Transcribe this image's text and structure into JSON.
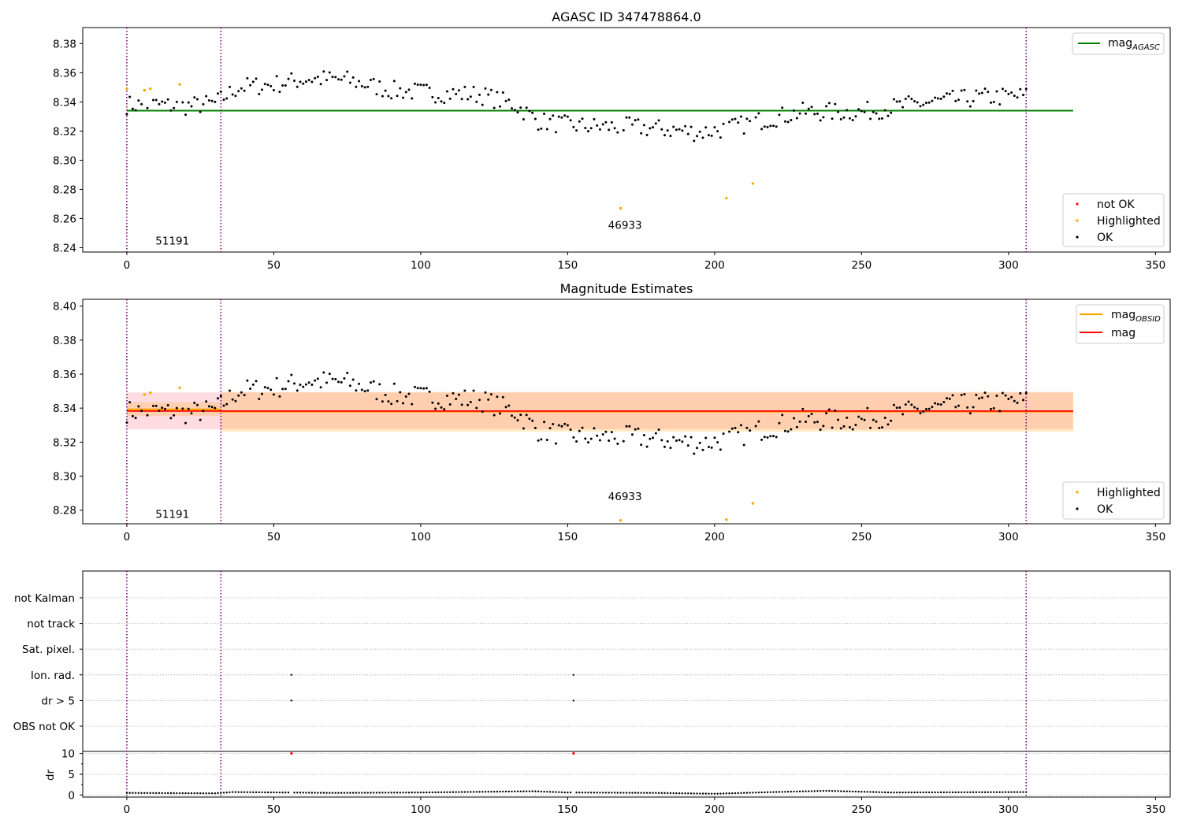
{
  "chart_data": [
    {
      "type": "scatter",
      "title": "AGASC ID 347478864.0",
      "xlim": [
        -15,
        355
      ],
      "ylim": [
        8.237,
        8.391
      ],
      "xticks": [
        "0",
        "50",
        "100",
        "150",
        "200",
        "250",
        "300",
        "350"
      ],
      "yticks": [
        "8.24",
        "8.26",
        "8.28",
        "8.30",
        "8.32",
        "8.34",
        "8.36",
        "8.38"
      ],
      "vlines": [
        0,
        32,
        306
      ],
      "hline": {
        "name": "mag_AGASC",
        "value": 8.334,
        "x_range": [
          0,
          322
        ],
        "color": "#008000"
      },
      "annotations": [
        {
          "text": "51191",
          "x": 15.5,
          "y": 8.242
        },
        {
          "text": "46933",
          "x": 169.5,
          "y": 8.253
        }
      ],
      "legend_top": {
        "position": "top-right",
        "entries": [
          {
            "name": "mag",
            "sub": "AGASC",
            "color": "#008000"
          }
        ]
      },
      "legend_bottom": {
        "position": "bottom-right",
        "entries": [
          {
            "name": "not OK",
            "color": "#ff0000"
          },
          {
            "name": "Highlighted",
            "color": "#ffa500"
          },
          {
            "name": "OK",
            "color": "#000000"
          }
        ]
      },
      "highlighted_points": [
        {
          "x": 0,
          "y": 8.349
        },
        {
          "x": 6,
          "y": 8.348
        },
        {
          "x": 8,
          "y": 8.349
        },
        {
          "x": 18,
          "y": 8.352
        },
        {
          "x": 168,
          "y": 8.267
        },
        {
          "x": 204,
          "y": 8.274
        },
        {
          "x": 213,
          "y": 8.284
        }
      ]
    },
    {
      "type": "scatter",
      "title": "Magnitude Estimates",
      "xlim": [
        -15,
        355
      ],
      "ylim": [
        8.272,
        8.404
      ],
      "xticks": [
        "0",
        "50",
        "100",
        "150",
        "200",
        "250",
        "300",
        "350"
      ],
      "yticks": [
        "8.28",
        "8.30",
        "8.32",
        "8.34",
        "8.36",
        "8.38",
        "8.40"
      ],
      "vlines": [
        0,
        32,
        306
      ],
      "mag_line": {
        "name": "mag",
        "value": 8.3383,
        "x_range": [
          0,
          322
        ],
        "color": "#ff0000"
      },
      "mag_band": {
        "low": 8.3275,
        "high": 8.3492,
        "color": "#ffc0cb"
      },
      "obsid_segments": [
        {
          "x_range": [
            0,
            32
          ],
          "value": 8.3392,
          "low": 8.3355,
          "high": 8.3435
        },
        {
          "x_range": [
            32,
            322
          ],
          "value": 8.338,
          "low": 8.3262,
          "high": 8.3495
        }
      ],
      "annotations": [
        {
          "text": "51191",
          "x": 15.5,
          "y": 8.2755
        },
        {
          "text": "46933",
          "x": 169.5,
          "y": 8.286
        }
      ],
      "legend_top": {
        "position": "top-right",
        "entries": [
          {
            "name": "mag",
            "sub": "OBSID",
            "color": "#ffa500"
          },
          {
            "name": "mag",
            "sub": "",
            "color": "#ff0000"
          }
        ]
      },
      "legend_bottom": {
        "position": "bottom-right",
        "entries": [
          {
            "name": "Highlighted",
            "color": "#ffa500"
          },
          {
            "name": "OK",
            "color": "#000000"
          }
        ]
      },
      "highlighted_points": [
        {
          "x": 6,
          "y": 8.348
        },
        {
          "x": 8,
          "y": 8.349
        },
        {
          "x": 18,
          "y": 8.352
        },
        {
          "x": 168,
          "y": 8.274
        },
        {
          "x": 204,
          "y": 8.2745
        },
        {
          "x": 213,
          "y": 8.284
        }
      ]
    },
    {
      "type": "scatter",
      "title": "",
      "xlim": [
        -15,
        355
      ],
      "xticks": [
        "0",
        "50",
        "100",
        "150",
        "200",
        "250",
        "300",
        "350"
      ],
      "vlines": [
        0,
        32,
        306
      ],
      "flag_labels": [
        "not Kalman",
        "not track",
        "Sat. pixel.",
        "Ion. rad.",
        "dr > 5",
        "OBS not OK"
      ],
      "flag_points": [
        {
          "flag": "Ion. rad.",
          "x": 56
        },
        {
          "flag": "Ion. rad.",
          "x": 152
        },
        {
          "flag": "dr > 5",
          "x": 56
        },
        {
          "flag": "dr > 5",
          "x": 152
        }
      ],
      "dr": {
        "ylabel": "dr",
        "ylim": [
          -0.5,
          10.5
        ],
        "yticks": [
          "0",
          "5",
          "10"
        ],
        "outliers": [
          {
            "x": 56,
            "y": 10
          },
          {
            "x": 152,
            "y": 10
          }
        ],
        "baseline": [
          {
            "x": 0,
            "y": 0.5
          },
          {
            "x": 30,
            "y": 0.4
          },
          {
            "x": 36,
            "y": 0.7
          },
          {
            "x": 70,
            "y": 0.5
          },
          {
            "x": 100,
            "y": 0.6
          },
          {
            "x": 138,
            "y": 0.9
          },
          {
            "x": 150,
            "y": 0.6
          },
          {
            "x": 180,
            "y": 0.5
          },
          {
            "x": 200,
            "y": 0.3
          },
          {
            "x": 220,
            "y": 0.7
          },
          {
            "x": 238,
            "y": 1.0
          },
          {
            "x": 260,
            "y": 0.6
          },
          {
            "x": 306,
            "y": 0.7
          }
        ]
      }
    }
  ]
}
